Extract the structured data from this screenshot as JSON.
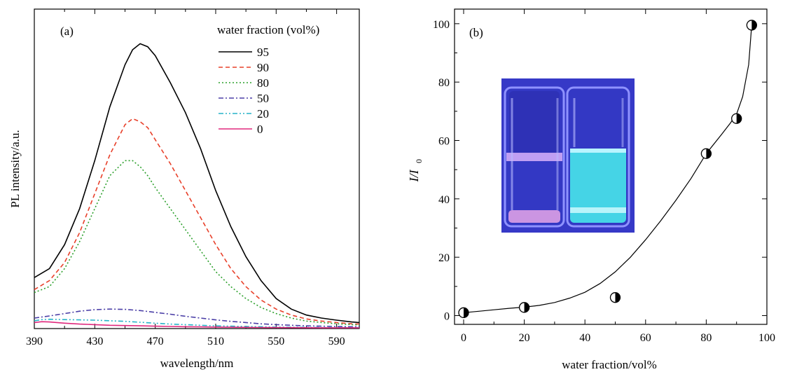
{
  "chart_data": [
    {
      "panel": "(a)",
      "type": "line",
      "xlabel": "wavelength/nm",
      "ylabel": "PL intensity/a.u.",
      "xlim": [
        390,
        605
      ],
      "ylim": [
        0,
        100
      ],
      "x_ticks": [
        390,
        430,
        470,
        510,
        550,
        590
      ],
      "legend_title": "water fraction (vol%)",
      "legend_position": "top-right",
      "series": [
        {
          "name": "95",
          "color": "#000000",
          "dash": "solid",
          "x": [
            390,
            400,
            410,
            420,
            430,
            440,
            450,
            455,
            460,
            465,
            470,
            480,
            490,
            500,
            510,
            520,
            530,
            540,
            550,
            560,
            570,
            580,
            590,
            600,
            605
          ],
          "y": [
            17,
            20,
            28,
            40,
            56,
            74,
            88,
            93,
            95,
            94,
            91,
            82,
            72,
            60,
            46,
            34,
            24,
            16,
            10,
            6.5,
            4.5,
            3.5,
            2.8,
            2.2,
            2
          ]
        },
        {
          "name": "90",
          "color": "#e8402a",
          "dash": "6,4",
          "x": [
            390,
            400,
            410,
            420,
            430,
            440,
            450,
            455,
            460,
            465,
            470,
            480,
            490,
            500,
            510,
            520,
            530,
            540,
            550,
            560,
            570,
            580,
            590,
            600,
            605
          ],
          "y": [
            13,
            16,
            22,
            32,
            45,
            58,
            68,
            70,
            69,
            67,
            63,
            55,
            46,
            37,
            28,
            20,
            14,
            9.5,
            6.5,
            4.5,
            3.2,
            2.5,
            2,
            1.6,
            1.5
          ]
        },
        {
          "name": "80",
          "color": "#2ca02c",
          "dash": "2,3",
          "x": [
            390,
            400,
            410,
            420,
            430,
            440,
            450,
            455,
            460,
            465,
            470,
            480,
            490,
            500,
            510,
            520,
            530,
            540,
            550,
            560,
            570,
            580,
            590,
            600,
            605
          ],
          "y": [
            12,
            14,
            20,
            29,
            40,
            51,
            56,
            56,
            54,
            51,
            47,
            40,
            33,
            26,
            19,
            14,
            10,
            7,
            5,
            3.5,
            2.5,
            2,
            1.6,
            1.3,
            1.2
          ]
        },
        {
          "name": "50",
          "color": "#4b3fa7",
          "dash": "7,3,2,3",
          "x": [
            390,
            400,
            410,
            420,
            430,
            440,
            450,
            460,
            470,
            480,
            490,
            500,
            510,
            520,
            530,
            540,
            550,
            560,
            570,
            580,
            590,
            600,
            605
          ],
          "y": [
            3.5,
            4.2,
            5,
            5.8,
            6.3,
            6.5,
            6.4,
            6,
            5.4,
            4.8,
            4.1,
            3.5,
            2.9,
            2.4,
            2,
            1.6,
            1.3,
            1.1,
            0.9,
            0.8,
            0.7,
            0.6,
            0.6
          ]
        },
        {
          "name": "20",
          "color": "#27b3c8",
          "dash": "7,3,2,3,2,3",
          "x": [
            390,
            395,
            400,
            410,
            420,
            430,
            440,
            450,
            460,
            470,
            480,
            490,
            500,
            510,
            520,
            530,
            540,
            550,
            560,
            570,
            580,
            590,
            600,
            605
          ],
          "y": [
            2.6,
            3,
            3.1,
            3,
            2.9,
            2.8,
            2.6,
            2.4,
            2.1,
            1.8,
            1.5,
            1.3,
            1.1,
            0.9,
            0.8,
            0.7,
            0.6,
            0.5,
            0.45,
            0.4,
            0.35,
            0.3,
            0.3,
            0.3
          ]
        },
        {
          "name": "0",
          "color": "#e0297d",
          "dash": "solid",
          "x": [
            390,
            395,
            400,
            410,
            420,
            430,
            440,
            450,
            460,
            470,
            480,
            490,
            500,
            510,
            520,
            530,
            540,
            550,
            560,
            570,
            580,
            590,
            600,
            605
          ],
          "y": [
            2,
            2.3,
            2.2,
            1.8,
            1.5,
            1.3,
            1.1,
            1,
            0.9,
            0.8,
            0.7,
            0.6,
            0.55,
            0.5,
            0.45,
            0.4,
            0.35,
            0.32,
            0.3,
            0.28,
            0.26,
            0.25,
            0.25,
            0.25
          ]
        }
      ]
    },
    {
      "panel": "(b)",
      "type": "scatter",
      "xlabel_main": "water fraction/vol%",
      "ylabel_main": "I/I",
      "ylabel_sub": "0",
      "xlim": [
        -3,
        100
      ],
      "ylim": [
        -3,
        105
      ],
      "x_ticks": [
        0,
        20,
        40,
        60,
        80,
        100
      ],
      "y_ticks": [
        0,
        20,
        40,
        60,
        80,
        100
      ],
      "points": {
        "x": [
          0,
          20,
          50,
          80,
          90,
          95
        ],
        "y": [
          1,
          2.8,
          6.2,
          55.5,
          67.5,
          99.5
        ]
      },
      "fit": {
        "x": [
          0,
          5,
          10,
          15,
          20,
          25,
          30,
          35,
          40,
          45,
          50,
          55,
          60,
          65,
          70,
          75,
          80,
          85,
          88,
          90,
          92,
          94,
          95
        ],
        "y": [
          1,
          1.5,
          2,
          2.5,
          2.9,
          3.5,
          4.5,
          6,
          8,
          11,
          15,
          20,
          26,
          32.5,
          39.5,
          47,
          55.5,
          62,
          66,
          69,
          75,
          86,
          99.5
        ]
      },
      "inset": "photograph of two vials under UV light"
    }
  ]
}
